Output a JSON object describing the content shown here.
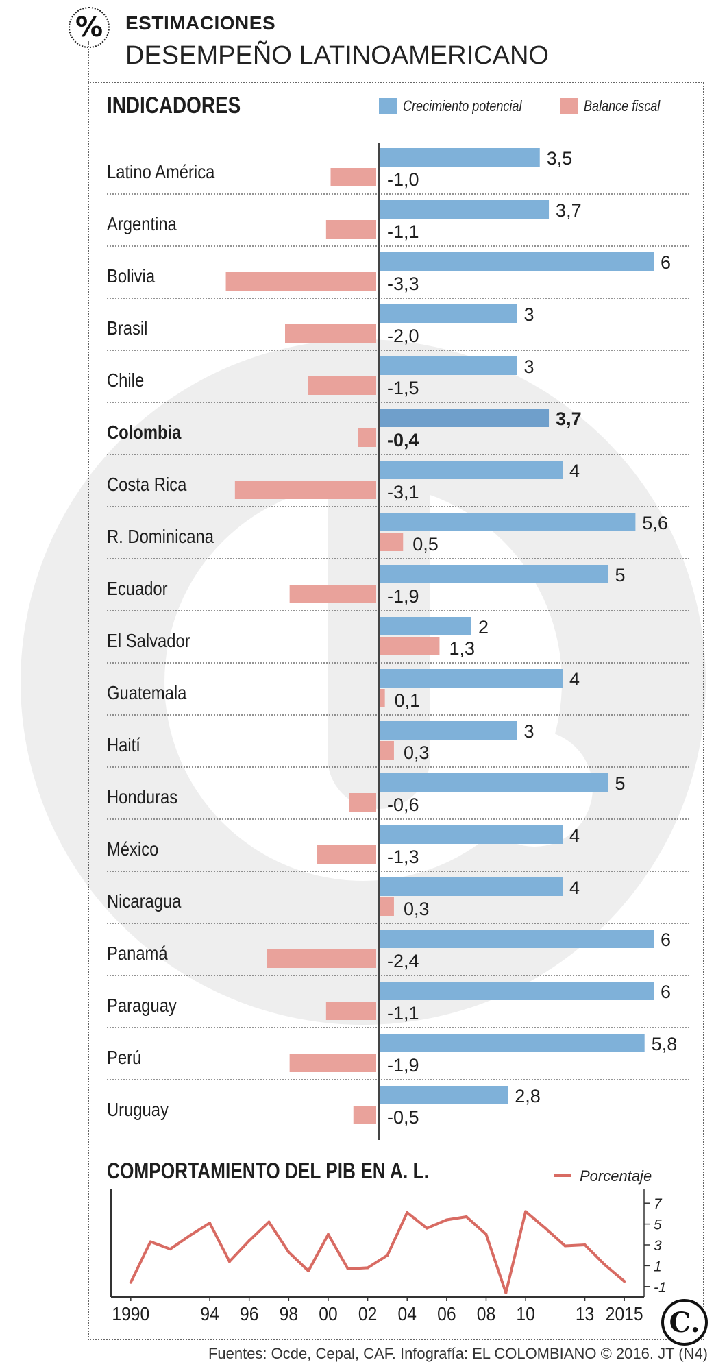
{
  "header": {
    "icon": "percent-icon",
    "icon_glyph": "%",
    "kicker": "ESTIMACIONES",
    "title": "DESEMPEÑO LATINOAMERICANO"
  },
  "section": {
    "title": "INDICADORES"
  },
  "legend": {
    "growth": "Crecimiento potencial",
    "fiscal": "Balance fiscal"
  },
  "pib": {
    "title": "COMPORTAMIENTO DEL PIB EN A. L.",
    "legend": "Porcentaje"
  },
  "source": "Fuentes: Ocde, Cepal, CAF. Infografía: EL COLOMBIANO © 2016. JT (N4)",
  "logo_glyph": "C.",
  "colors": {
    "growth": "#7fb1d9",
    "fiscal": "#e9a29b",
    "line": "#d86b63",
    "highlight_growth": "#6f9fcb",
    "watermark": "#eeeeee"
  },
  "chart_data": [
    {
      "type": "bar",
      "title": "INDICADORES",
      "highlight": "Colombia",
      "categories": [
        "Latino América",
        "Argentina",
        "Bolivia",
        "Brasil",
        "Chile",
        "Colombia",
        "Costa Rica",
        "R. Dominicana",
        "Ecuador",
        "El Salvador",
        "Guatemala",
        "Haití",
        "Honduras",
        "México",
        "Nicaragua",
        "Panamá",
        "Paraguay",
        "Perú",
        "Uruguay"
      ],
      "series": [
        {
          "name": "Crecimiento potencial",
          "values": [
            3.5,
            3.7,
            6,
            3,
            3,
            3.7,
            4,
            5.6,
            5,
            2,
            4,
            3,
            5,
            4,
            4,
            6,
            6,
            5.8,
            2.8
          ],
          "labels": [
            "3,5",
            "3,7",
            "6",
            "3",
            "3",
            "3,7",
            "4",
            "5,6",
            "5",
            "2",
            "4",
            "3",
            "5",
            "4",
            "4",
            "6",
            "6",
            "5,8",
            "2,8"
          ]
        },
        {
          "name": "Balance fiscal",
          "values": [
            -1.0,
            -1.1,
            -3.3,
            -2.0,
            -1.5,
            -0.4,
            -3.1,
            0.5,
            -1.9,
            1.3,
            0.1,
            0.3,
            -0.6,
            -1.3,
            0.3,
            -2.4,
            -1.1,
            -1.9,
            -0.5
          ],
          "labels": [
            "-1,0",
            "-1,1",
            "-3,3",
            "-2,0",
            "-1,5",
            "-0,4",
            "-3,1",
            "0,5",
            "-1,9",
            "1,3",
            "0,1",
            "0,3",
            "-0,6",
            "-1,3",
            "0,3",
            "-2,4",
            "-1,1",
            "-1,9",
            "-0,5"
          ]
        }
      ]
    },
    {
      "type": "line",
      "title": "COMPORTAMIENTO DEL PIB EN A. L.",
      "series": [
        {
          "name": "Porcentaje",
          "x": [
            1990,
            1991,
            1992,
            1993,
            1994,
            1995,
            1996,
            1997,
            1998,
            1999,
            2000,
            2001,
            2002,
            2003,
            2004,
            2005,
            2006,
            2007,
            2008,
            2009,
            2010,
            2011,
            2012,
            2013,
            2014,
            2015
          ],
          "y": [
            -0.6,
            3.3,
            2.6,
            3.9,
            5.1,
            1.4,
            3.4,
            5.2,
            2.3,
            0.5,
            4.0,
            0.7,
            0.8,
            2.0,
            6.1,
            4.6,
            5.4,
            5.7,
            4.0,
            -1.6,
            6.2,
            4.6,
            2.9,
            3.0,
            1.1,
            -0.5
          ]
        }
      ],
      "xticks": [
        1990,
        1994,
        1996,
        1998,
        2000,
        2002,
        2004,
        2006,
        2008,
        2010,
        2013,
        2015
      ],
      "xtick_labels": [
        "1990",
        "94",
        "96",
        "98",
        "00",
        "02",
        "04",
        "06",
        "08",
        "10",
        "13",
        "2015"
      ],
      "yticks": [
        7,
        5,
        3,
        1,
        -1
      ],
      "ylim": [
        -2,
        8
      ],
      "xlim": [
        1989,
        2016
      ]
    }
  ]
}
